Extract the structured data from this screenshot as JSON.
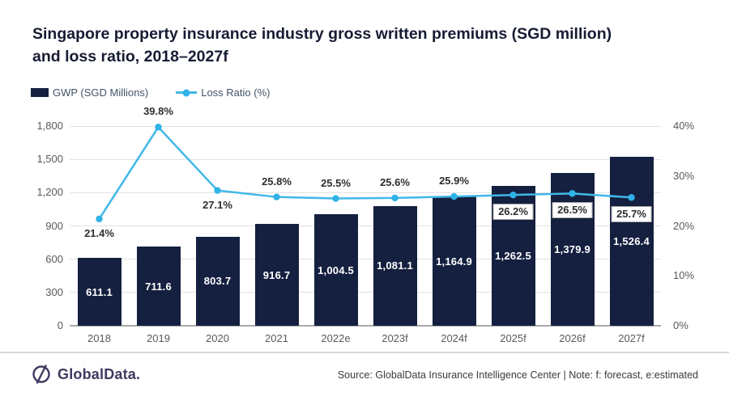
{
  "header": {
    "title_line1": "Singapore property insurance industry gross written premiums (SGD million)",
    "title_line2": "and loss ratio, 2018–2027f"
  },
  "legend": {
    "gwp_label": "GWP (SGD Millions)",
    "loss_label": "Loss Ratio (%)"
  },
  "colors": {
    "bar": "#152040",
    "line": "#41b8e8",
    "marker": "#2fb3e8",
    "grid": "#e2e2e2",
    "axis_text": "#595959",
    "brand": "#3e3a60"
  },
  "chart_data": {
    "type": "bar",
    "subtype": "combo-bar-line-dual-axis",
    "title": "Singapore property insurance industry gross written premiums (SGD million) and loss ratio, 2018–2027f",
    "categories": [
      "2018",
      "2019",
      "2020",
      "2021",
      "2022e",
      "2023f",
      "2024f",
      "2025f",
      "2026f",
      "2027f"
    ],
    "series": [
      {
        "name": "GWP (SGD Millions)",
        "type": "bar",
        "axis": "left",
        "color": "#152040",
        "values": [
          611.1,
          711.6,
          803.7,
          916.7,
          1004.5,
          1081.1,
          1164.9,
          1262.5,
          1379.9,
          1526.4
        ],
        "value_labels": [
          "611.1",
          "711.6",
          "803.7",
          "916.7",
          "1,004.5",
          "1,081.1",
          "1,164.9",
          "1,262.5",
          "1,379.9",
          "1,526.4"
        ]
      },
      {
        "name": "Loss Ratio (%)",
        "type": "line",
        "axis": "right",
        "color": "#41b8e8",
        "values": [
          21.4,
          39.8,
          27.1,
          25.8,
          25.5,
          25.6,
          25.9,
          26.2,
          26.5,
          25.7
        ],
        "point_labels": [
          "21.4%",
          "39.8%",
          "27.1%",
          "25.8%",
          "25.5%",
          "25.6%",
          "25.9%",
          "26.2%",
          "26.5%",
          "25.7%"
        ],
        "label_pos": [
          "below",
          "above",
          "below",
          "above",
          "above",
          "above",
          "above",
          "below-boxed",
          "below-boxed",
          "below-boxed"
        ]
      }
    ],
    "left_axis": {
      "min": 0,
      "max": 1800,
      "ticks": [
        "0",
        "300",
        "600",
        "900",
        "1,200",
        "1,500",
        "1,800"
      ]
    },
    "right_axis": {
      "min": 0,
      "max": 40,
      "ticks": [
        "0%",
        "10%",
        "20%",
        "30%",
        "40%"
      ]
    },
    "grid": "horizontal",
    "legend_position": "top-left"
  },
  "footer": {
    "brand": "GlobalData.",
    "source_note": "Source: GlobalData Insurance Intelligence Center | Note: f: forecast, e:estimated"
  }
}
